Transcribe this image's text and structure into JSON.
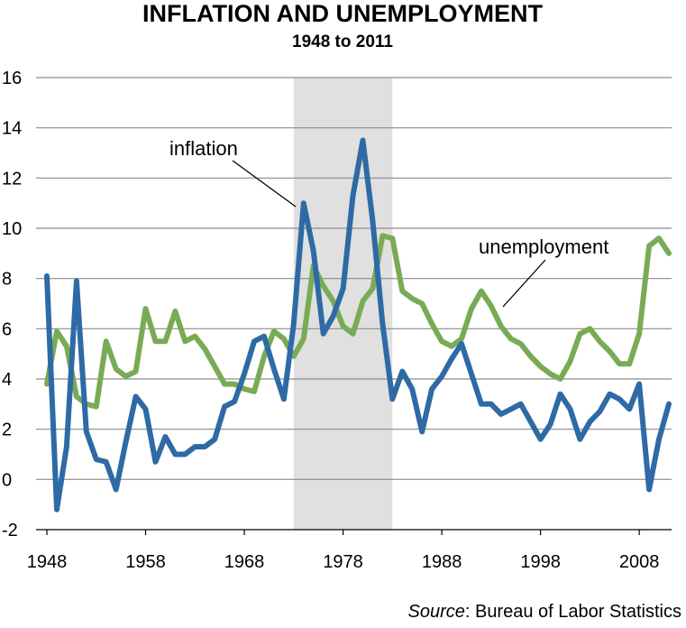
{
  "chart_data": {
    "type": "line",
    "title": "INFLATION AND UNEMPLOYMENT",
    "subtitle": "1948 to 2011",
    "source_prefix": "Source",
    "source_text": ": Bureau of Labor Statistics",
    "ylim": [
      -2,
      16
    ],
    "xlim": [
      1948,
      2011
    ],
    "y_ticks": [
      16,
      14,
      12,
      10,
      8,
      6,
      4,
      2,
      0,
      -2
    ],
    "x_ticks": [
      1948,
      1958,
      1968,
      1978,
      1988,
      1998,
      2008
    ],
    "grid": true,
    "shaded_band": {
      "from": 1973,
      "to": 1983
    },
    "annotations": [
      {
        "text": "inflation",
        "series": "inflation"
      },
      {
        "text": "unemployment",
        "series": "unemployment"
      }
    ],
    "colors": {
      "inflation": "#2e6aa5",
      "unemployment": "#79ab55",
      "band": "#d3d3d3"
    },
    "x": [
      1948,
      1949,
      1950,
      1951,
      1952,
      1953,
      1954,
      1955,
      1956,
      1957,
      1958,
      1959,
      1960,
      1961,
      1962,
      1963,
      1964,
      1965,
      1966,
      1967,
      1968,
      1969,
      1970,
      1971,
      1972,
      1973,
      1974,
      1975,
      1976,
      1977,
      1978,
      1979,
      1980,
      1981,
      1982,
      1983,
      1984,
      1985,
      1986,
      1987,
      1988,
      1989,
      1990,
      1991,
      1992,
      1993,
      1994,
      1995,
      1996,
      1997,
      1998,
      1999,
      2000,
      2001,
      2002,
      2003,
      2004,
      2005,
      2006,
      2007,
      2008,
      2009,
      2010,
      2011
    ],
    "series": [
      {
        "key": "inflation",
        "values": [
          8.1,
          -1.2,
          1.3,
          7.9,
          1.9,
          0.8,
          0.7,
          -0.4,
          1.5,
          3.3,
          2.8,
          0.7,
          1.7,
          1.0,
          1.0,
          1.3,
          1.3,
          1.6,
          2.9,
          3.1,
          4.2,
          5.5,
          5.7,
          4.4,
          3.2,
          6.2,
          11.0,
          9.1,
          5.8,
          6.5,
          7.6,
          11.3,
          13.5,
          10.3,
          6.2,
          3.2,
          4.3,
          3.6,
          1.9,
          3.6,
          4.1,
          4.8,
          5.4,
          4.2,
          3.0,
          3.0,
          2.6,
          2.8,
          3.0,
          2.3,
          1.6,
          2.2,
          3.4,
          2.8,
          1.6,
          2.3,
          2.7,
          3.4,
          3.2,
          2.8,
          3.8,
          -0.4,
          1.6,
          3.0
        ]
      },
      {
        "key": "unemployment",
        "values": [
          3.8,
          5.9,
          5.3,
          3.3,
          3.0,
          2.9,
          5.5,
          4.4,
          4.1,
          4.3,
          6.8,
          5.5,
          5.5,
          6.7,
          5.5,
          5.7,
          5.2,
          4.5,
          3.8,
          3.8,
          3.6,
          3.5,
          4.9,
          5.9,
          5.6,
          4.9,
          5.6,
          8.5,
          7.7,
          7.1,
          6.1,
          5.8,
          7.1,
          7.6,
          9.7,
          9.6,
          7.5,
          7.2,
          7.0,
          6.2,
          5.5,
          5.3,
          5.6,
          6.8,
          7.5,
          6.9,
          6.1,
          5.6,
          5.4,
          4.9,
          4.5,
          4.2,
          4.0,
          4.7,
          5.8,
          6.0,
          5.5,
          5.1,
          4.6,
          4.6,
          5.8,
          9.3,
          9.6,
          9.0
        ]
      }
    ]
  }
}
